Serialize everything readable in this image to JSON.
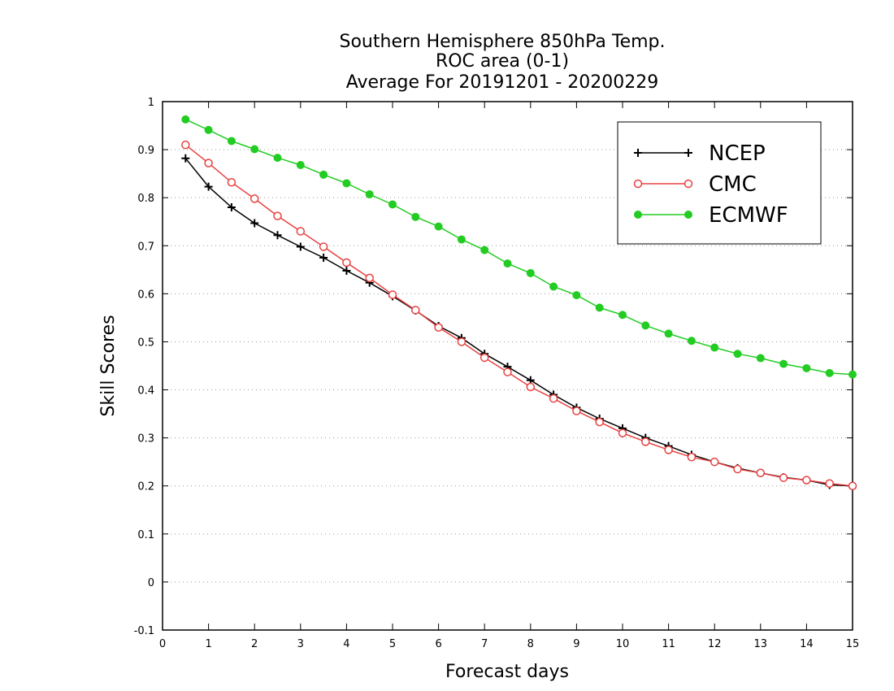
{
  "chart_data": {
    "type": "line",
    "title_lines": [
      "Southern Hemisphere 850hPa Temp.",
      "ROC area (0-1)",
      "Average For 20191201 - 20200229"
    ],
    "xlabel": "Forecast days",
    "ylabel": "Skill Scores",
    "xlim": [
      0,
      15
    ],
    "ylim": [
      -0.1,
      1
    ],
    "x_ticks": [
      "0",
      "1",
      "2",
      "3",
      "4",
      "5",
      "6",
      "7",
      "8",
      "9",
      "10",
      "11",
      "12",
      "13",
      "14",
      "15"
    ],
    "y_ticks": [
      "-0.1",
      "0",
      "0.1",
      "0.2",
      "0.3",
      "0.4",
      "0.5",
      "0.6",
      "0.7",
      "0.8",
      "0.9",
      "1"
    ],
    "y_tick_values": [
      -0.1,
      0,
      0.1,
      0.2,
      0.3,
      0.4,
      0.5,
      0.6,
      0.7,
      0.8,
      0.9,
      1.0
    ],
    "grid": "horizontal dotted",
    "legend_position": "top-right",
    "x": [
      0.5,
      1,
      1.5,
      2,
      2.5,
      3,
      3.5,
      4,
      4.5,
      5,
      5.5,
      6,
      6.5,
      7,
      7.5,
      8,
      8.5,
      9,
      9.5,
      10,
      10.5,
      11,
      11.5,
      12,
      12.5,
      13,
      13.5,
      14,
      14.5,
      15
    ],
    "series": [
      {
        "name": "NCEP",
        "color": "#000000",
        "marker": "plus",
        "values": [
          0.882,
          0.823,
          0.78,
          0.747,
          0.722,
          0.698,
          0.675,
          0.648,
          0.623,
          0.595,
          0.565,
          0.533,
          0.508,
          0.475,
          0.448,
          0.42,
          0.39,
          0.363,
          0.34,
          0.32,
          0.3,
          0.283,
          0.265,
          0.25,
          0.237,
          0.227,
          0.218,
          0.212,
          0.202,
          0.2
        ]
      },
      {
        "name": "CMC",
        "color": "#e84040",
        "marker": "open-circle",
        "values": [
          0.91,
          0.872,
          0.832,
          0.798,
          0.762,
          0.73,
          0.698,
          0.665,
          0.633,
          0.598,
          0.566,
          0.53,
          0.5,
          0.467,
          0.437,
          0.406,
          0.382,
          0.356,
          0.333,
          0.31,
          0.292,
          0.275,
          0.26,
          0.25,
          0.235,
          0.227,
          0.217,
          0.212,
          0.205,
          0.2
        ]
      },
      {
        "name": "ECMWF",
        "color": "#22cc22",
        "marker": "filled-circle",
        "values": [
          0.963,
          0.941,
          0.918,
          0.901,
          0.883,
          0.868,
          0.848,
          0.83,
          0.807,
          0.786,
          0.76,
          0.74,
          0.713,
          0.691,
          0.663,
          0.643,
          0.615,
          0.597,
          0.571,
          0.556,
          0.534,
          0.517,
          0.502,
          0.488,
          0.475,
          0.466,
          0.454,
          0.445,
          0.435,
          0.432
        ]
      }
    ]
  }
}
